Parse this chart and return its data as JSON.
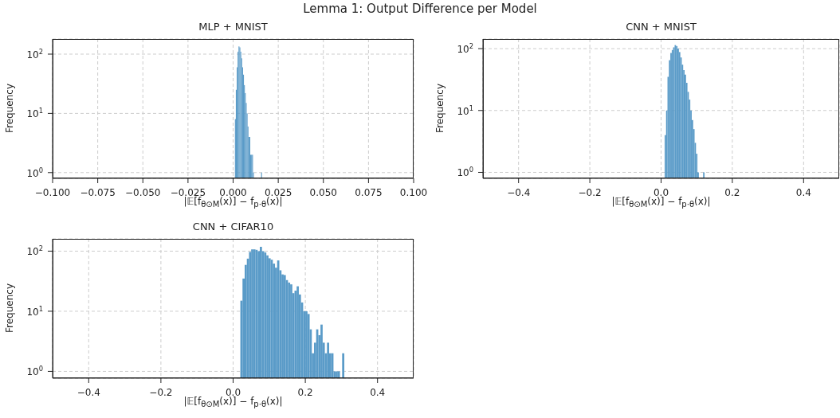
{
  "chart_data": [
    {
      "type": "histogram",
      "title": "MLP + MNIST",
      "annotations": [
        "Lemma 1: Output Difference per Model"
      ],
      "xlabel": "|𝔼[f$_{θ⊙M}$(x)] − f$_{p·θ}$(x)|",
      "ylabel": "Frequency",
      "color": "#5a9bc8",
      "log": true,
      "grid": true,
      "bins": [
        0.001,
        0.0015,
        0.002,
        0.0025,
        0.003,
        0.0035,
        0.004,
        0.0045,
        0.005,
        0.0055,
        0.006,
        0.0065,
        0.007,
        0.0075,
        0.008,
        0.0085,
        0.009,
        0.0095,
        0.01,
        0.0105,
        0.011,
        0.0115,
        0.012,
        0.0125,
        0.013,
        0.0135,
        0.014,
        0.0145,
        0.015,
        0.0155,
        0.016
      ],
      "values": [
        8,
        25,
        60,
        110,
        135,
        130,
        110,
        85,
        60,
        45,
        30,
        22,
        15,
        10,
        6,
        4,
        4,
        2,
        2,
        2,
        1,
        null,
        null,
        null,
        null,
        null,
        null,
        null,
        null,
        1
      ],
      "xlim": [
        -0.1,
        0.1
      ],
      "xticks": [
        {
          "value": -0.1,
          "label": "−0.100"
        },
        {
          "value": -0.075,
          "label": "−0.075"
        },
        {
          "value": -0.05,
          "label": "−0.050"
        },
        {
          "value": -0.025,
          "label": "−0.025"
        },
        {
          "value": 0,
          "label": "0.000"
        },
        {
          "value": 0.025,
          "label": "0.025"
        },
        {
          "value": 0.05,
          "label": "0.050"
        },
        {
          "value": 0.075,
          "label": "0.075"
        },
        {
          "value": 0.1,
          "label": "0.100"
        }
      ],
      "ylim": [
        0.8,
        180
      ],
      "yticks": [
        {
          "value": 1,
          "label": "10$^{0}$"
        },
        {
          "value": 10,
          "label": "10$^{1}$"
        },
        {
          "value": 100,
          "label": "10$^{2}$"
        }
      ]
    },
    {
      "type": "histogram",
      "title": "CNN + MNIST",
      "xlabel": "|𝔼[f$_{θ⊙M}$(x)] − f$_{p·θ}$(x)|",
      "ylabel": "Frequency",
      "color": "#5a9bc8",
      "log": true,
      "grid": true,
      "bins": [
        0.01,
        0.014,
        0.018,
        0.022,
        0.026,
        0.03,
        0.034,
        0.038,
        0.042,
        0.046,
        0.05,
        0.054,
        0.058,
        0.062,
        0.066,
        0.07,
        0.074,
        0.078,
        0.082,
        0.086,
        0.09,
        0.094,
        0.098,
        0.102,
        0.106,
        0.11,
        0.114,
        0.118,
        0.122
      ],
      "values": [
        4,
        10,
        35,
        65,
        85,
        95,
        105,
        114,
        110,
        100,
        88,
        72,
        55,
        45,
        38,
        28,
        20,
        15,
        10,
        7,
        5,
        3,
        2,
        1,
        null,
        null,
        null,
        1
      ],
      "xlim": [
        -0.5,
        0.5
      ],
      "xticks": [
        {
          "value": -0.4,
          "label": "−0.4"
        },
        {
          "value": -0.2,
          "label": "−0.2"
        },
        {
          "value": 0,
          "label": "0.0"
        },
        {
          "value": 0.2,
          "label": "0.2"
        },
        {
          "value": 0.4,
          "label": "0.4"
        }
      ],
      "ylim": [
        0.8,
        143
      ],
      "yticks": [
        {
          "value": 1,
          "label": "10$^{0}$"
        },
        {
          "value": 10,
          "label": "10$^{1}$"
        },
        {
          "value": 100,
          "label": "10$^{2}$"
        }
      ]
    },
    {
      "type": "histogram",
      "title": "CNN + CIFAR10",
      "xlabel": "|𝔼[f$_{θ⊙M}$(x)] − f$_{p·θ}$(x)|",
      "ylabel": "Frequency",
      "color": "#5a9bc8",
      "log": true,
      "grid": true,
      "bins": [
        0.02,
        0.026,
        0.032,
        0.038,
        0.044,
        0.05,
        0.056,
        0.062,
        0.068,
        0.074,
        0.08,
        0.086,
        0.092,
        0.098,
        0.104,
        0.11,
        0.116,
        0.122,
        0.128,
        0.134,
        0.14,
        0.146,
        0.152,
        0.158,
        0.164,
        0.17,
        0.176,
        0.182,
        0.188,
        0.194,
        0.2,
        0.206,
        0.212,
        0.218,
        0.224,
        0.23,
        0.236,
        0.242,
        0.248,
        0.254,
        0.26,
        0.266,
        0.272,
        0.278,
        0.284,
        0.29,
        0.296,
        0.302,
        0.308
      ],
      "values": [
        15,
        35,
        59,
        75,
        97,
        107,
        107,
        105,
        100,
        118,
        100,
        95,
        85,
        76,
        72,
        62,
        53,
        70,
        48,
        41,
        40,
        33,
        30,
        28,
        20,
        22,
        26,
        19,
        14,
        10,
        10,
        9,
        5,
        2,
        3,
        5,
        4,
        6,
        3,
        2,
        3,
        2,
        2,
        1,
        1,
        1,
        null,
        2
      ],
      "xlim": [
        -0.5,
        0.5
      ],
      "xticks": [
        {
          "value": -0.4,
          "label": "−0.4"
        },
        {
          "value": -0.2,
          "label": "−0.2"
        },
        {
          "value": 0,
          "label": "0.0"
        },
        {
          "value": 0.2,
          "label": "0.2"
        },
        {
          "value": 0.4,
          "label": "0.4"
        }
      ],
      "ylim": [
        0.77,
        160
      ],
      "yticks": [
        {
          "value": 1,
          "label": "10$^{0}$"
        },
        {
          "value": 10,
          "label": "10$^{1}$"
        },
        {
          "value": 100,
          "label": "10$^{2}$"
        }
      ]
    }
  ]
}
